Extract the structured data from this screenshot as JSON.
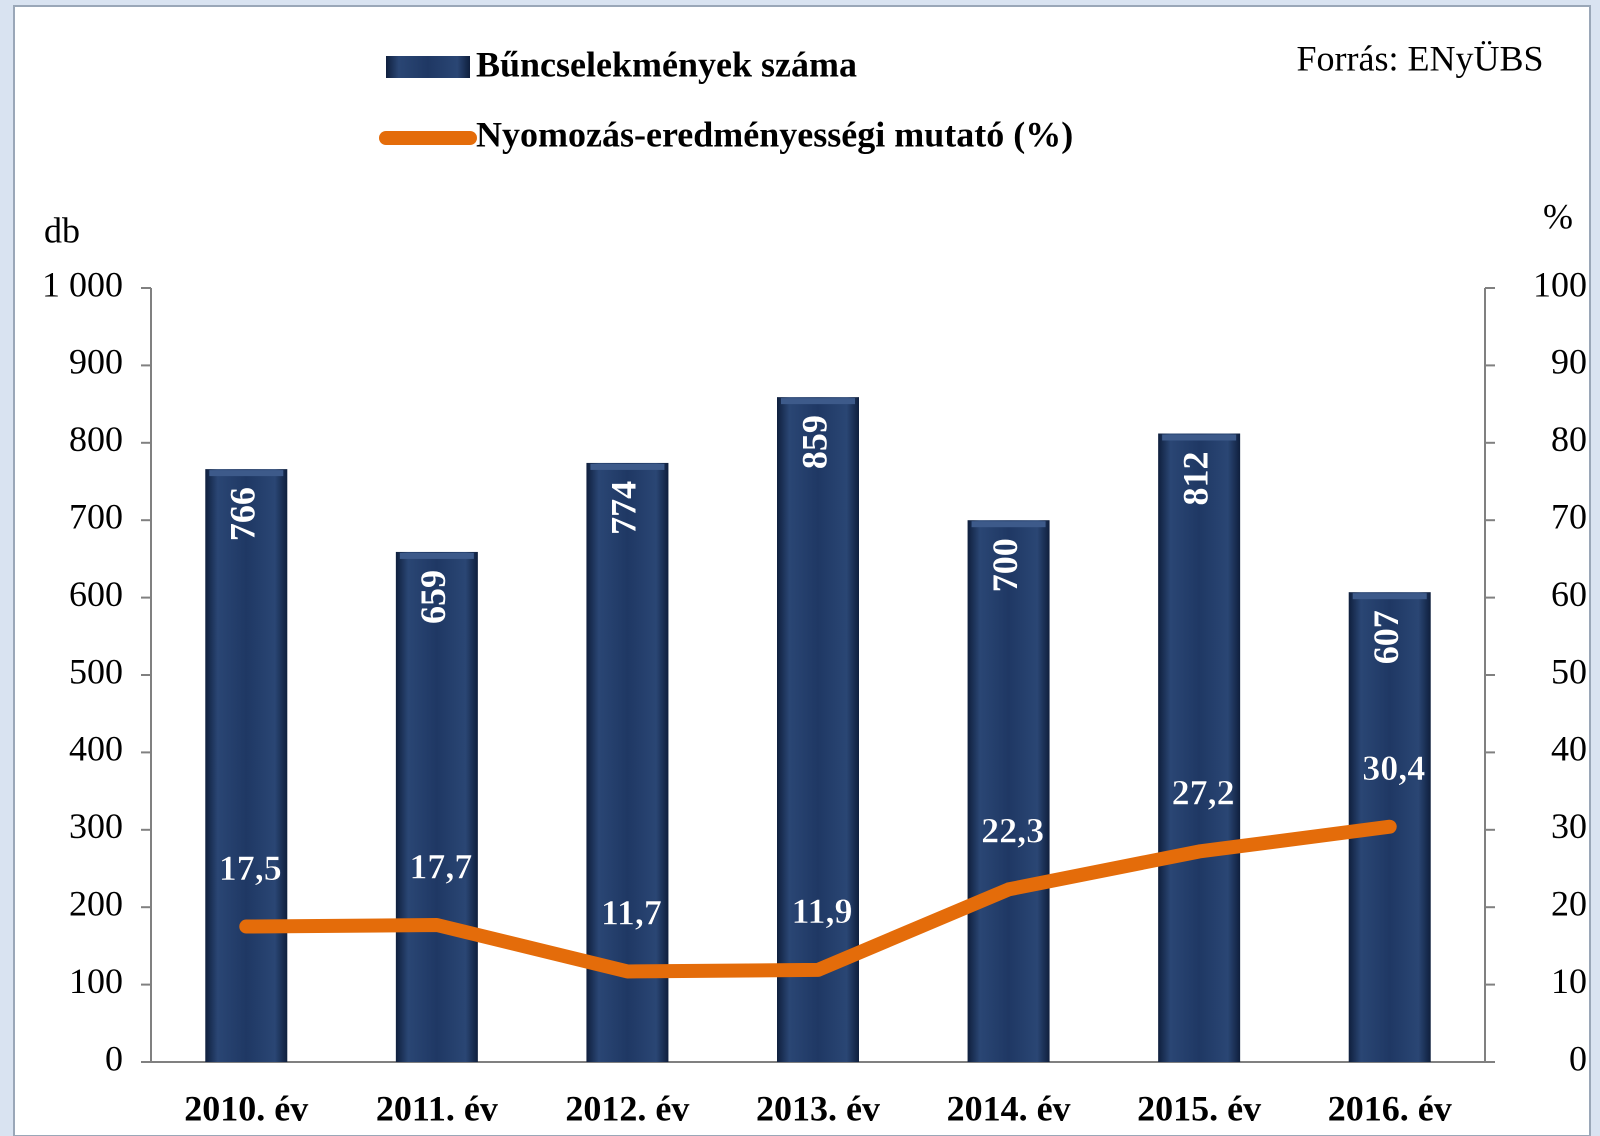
{
  "chart_data": {
    "type": "bar",
    "source": "Forrás: ENyÜBS",
    "y_label": "db",
    "y2_label": "%",
    "categories": [
      "2010. év",
      "2011. év",
      "2012. év",
      "2013. év",
      "2014. év",
      "2015. év",
      "2016. év"
    ],
    "series": [
      {
        "name": "Bűncselekmények száma",
        "type": "bar",
        "color": "#1f3864",
        "values": [
          766,
          659,
          774,
          859,
          700,
          812,
          607
        ]
      },
      {
        "name": "Nyomozás-eredményességi mutató (%)",
        "type": "line",
        "axis": "y2",
        "color": "#e46c0a",
        "values": [
          17.5,
          17.7,
          11.7,
          11.9,
          22.3,
          27.2,
          30.4
        ],
        "value_labels": [
          "17,5",
          "17,7",
          "11,7",
          "11,9",
          "22,3",
          "27,2",
          "30,4"
        ]
      }
    ],
    "ylim": [
      0,
      1000
    ],
    "yticks": [
      0,
      100,
      200,
      300,
      400,
      500,
      600,
      700,
      800,
      900,
      {
        "value": 1000,
        "label": "1 000"
      }
    ],
    "y2lim": [
      0,
      100
    ],
    "y2ticks": [
      0,
      10,
      20,
      30,
      40,
      50,
      60,
      70,
      80,
      90,
      100
    ],
    "grid": false,
    "legend": "top"
  }
}
